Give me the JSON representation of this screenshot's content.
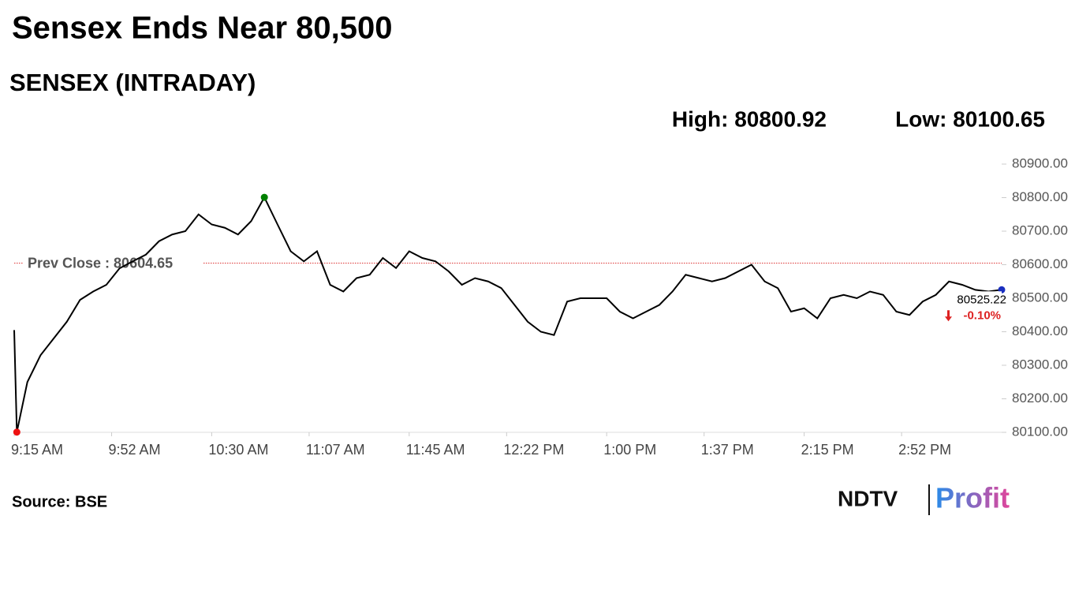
{
  "chart_data": {
    "type": "line",
    "title": "Sensex Ends Near 80,500",
    "subtitle": "SENSEX (INTRADAY)",
    "high_label": "High: 80800.92",
    "low_label": "Low: 80100.65",
    "prev_close": 80604.65,
    "prev_close_label": "Prev Close : 80604.65",
    "change_label": "-0.10%",
    "source": "Source: BSE",
    "logo": [
      "NDTV",
      "Profit"
    ],
    "x": [
      "9:15 AM",
      "9:16 AM",
      "9:20 AM",
      "9:25 AM",
      "9:30 AM",
      "9:35 AM",
      "9:40 AM",
      "9:45 AM",
      "9:50 AM",
      "9:55 AM",
      "10:00 AM",
      "10:05 AM",
      "10:10 AM",
      "10:15 AM",
      "10:20 AM",
      "10:25 AM",
      "10:30 AM",
      "10:35 AM",
      "10:40 AM",
      "10:45 AM",
      "10:50 AM",
      "10:55 AM",
      "11:00 AM",
      "11:05 AM",
      "11:10 AM",
      "11:15 AM",
      "11:20 AM",
      "11:25 AM",
      "11:30 AM",
      "11:35 AM",
      "11:40 AM",
      "11:45 AM",
      "11:50 AM",
      "11:55 AM",
      "12:00 PM",
      "12:05 PM",
      "12:10 PM",
      "12:15 PM",
      "12:20 PM",
      "12:25 PM",
      "12:30 PM",
      "12:35 PM",
      "12:40 PM",
      "12:45 PM",
      "12:50 PM",
      "12:55 PM",
      "1:00 PM",
      "1:05 PM",
      "1:10 PM",
      "1:15 PM",
      "1:20 PM",
      "1:25 PM",
      "1:30 PM",
      "1:35 PM",
      "1:40 PM",
      "1:45 PM",
      "1:50 PM",
      "1:55 PM",
      "2:00 PM",
      "2:05 PM",
      "2:10 PM",
      "2:15 PM",
      "2:20 PM",
      "2:25 PM",
      "2:30 PM",
      "2:35 PM",
      "2:40 PM",
      "2:45 PM",
      "2:50 PM",
      "2:55 PM",
      "3:00 PM",
      "3:05 PM",
      "3:10 PM",
      "3:15 PM",
      "3:20 PM",
      "3:25 PM",
      "3:30 PM"
    ],
    "series": [
      {
        "name": "SENSEX",
        "color": "#000000",
        "values": [
          80405,
          80100.65,
          80250,
          80330,
          80380,
          80430,
          80495,
          80520,
          80540,
          80589,
          80610,
          80630,
          80670,
          80690,
          80700,
          80750,
          80720,
          80710,
          80690,
          80730,
          80800.92,
          80720,
          80640,
          80610,
          80640,
          80540,
          80520,
          80560,
          80570,
          80620,
          80590,
          80640,
          80620,
          80610,
          80580,
          80540,
          80560,
          80550,
          80530,
          80480,
          80430,
          80400,
          80390,
          80490,
          80500,
          80500,
          80500,
          80460,
          80440,
          80460,
          80480,
          80520,
          80570,
          80560,
          80550,
          80560,
          80580,
          80600,
          80550,
          80530,
          80460,
          80470,
          80440,
          80500,
          80510,
          80500,
          80520,
          80510,
          80460,
          80450,
          80490,
          80510,
          80550,
          80540,
          80525,
          80520,
          80525.22
        ]
      }
    ],
    "xticks": [
      "9:15 AM",
      "9:52 AM",
      "10:30 AM",
      "11:07 AM",
      "11:45 AM",
      "12:22 PM",
      "1:00 PM",
      "1:37 PM",
      "2:15 PM",
      "2:52 PM"
    ],
    "xlim": [
      "9:15 AM",
      "3:30 PM"
    ],
    "ylim": [
      80100,
      80900
    ],
    "yticks": [
      {
        "value": 80100,
        "label": "80100.00"
      },
      {
        "value": 80200,
        "label": "80200.00"
      },
      {
        "value": 80300,
        "label": "80300.00"
      },
      {
        "value": 80400,
        "label": "80400.00"
      },
      {
        "value": 80500,
        "label": "80500.00"
      },
      {
        "value": 80600,
        "label": "80600.00"
      },
      {
        "value": 80700,
        "label": "80700.00"
      },
      {
        "value": 80800,
        "label": "80800.00"
      },
      {
        "value": 80900,
        "label": "80900.00"
      }
    ]
  }
}
